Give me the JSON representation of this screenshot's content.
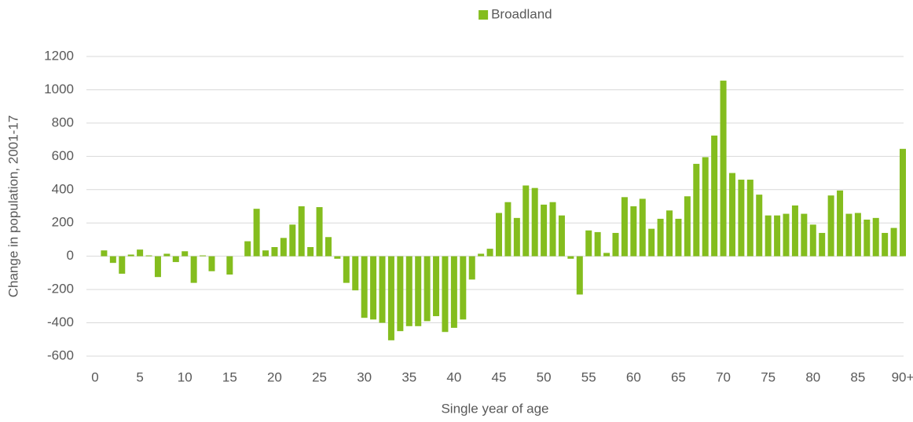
{
  "chart_data": {
    "type": "bar",
    "categories": [
      "0",
      null,
      null,
      null,
      null,
      "5",
      null,
      null,
      null,
      null,
      "10",
      null,
      null,
      null,
      null,
      "15",
      null,
      null,
      null,
      null,
      "20",
      null,
      null,
      null,
      null,
      "25",
      null,
      null,
      null,
      null,
      "30",
      null,
      null,
      null,
      null,
      "35",
      null,
      null,
      null,
      null,
      "40",
      null,
      null,
      null,
      null,
      "45",
      null,
      null,
      null,
      null,
      "50",
      null,
      null,
      null,
      null,
      "55",
      null,
      null,
      null,
      null,
      "60",
      null,
      null,
      null,
      null,
      "65",
      null,
      null,
      null,
      null,
      "70",
      null,
      null,
      null,
      null,
      "75",
      null,
      null,
      null,
      null,
      "80",
      null,
      null,
      null,
      null,
      "85",
      null,
      null,
      null,
      null,
      "90+"
    ],
    "series": [
      {
        "name": "Broadland",
        "color": "#84bd1e",
        "values": [
          0,
          35,
          -40,
          -105,
          10,
          40,
          5,
          -125,
          15,
          -35,
          30,
          -160,
          5,
          -90,
          0,
          -110,
          0,
          90,
          285,
          35,
          55,
          110,
          190,
          300,
          55,
          295,
          115,
          -15,
          -160,
          -205,
          -370,
          -380,
          -400,
          -505,
          -450,
          -420,
          -420,
          -390,
          -360,
          -455,
          -430,
          -380,
          -140,
          15,
          45,
          260,
          325,
          230,
          425,
          410,
          310,
          325,
          245,
          -15,
          -230,
          155,
          145,
          20,
          140,
          355,
          300,
          345,
          165,
          225,
          275,
          225,
          360,
          555,
          595,
          725,
          1055,
          500,
          460,
          460,
          370,
          245,
          245,
          255,
          305,
          255,
          190,
          140,
          365,
          395,
          255,
          260,
          220,
          230,
          140,
          170,
          645
        ]
      }
    ],
    "ylim": [
      -600,
      1200
    ],
    "yticks": [
      -600,
      -400,
      -200,
      0,
      200,
      400,
      600,
      800,
      1000,
      1200
    ],
    "ylabel": "Change in population, 2001-17",
    "xlabel": "Single year of age",
    "grid": true,
    "legend": "top"
  }
}
